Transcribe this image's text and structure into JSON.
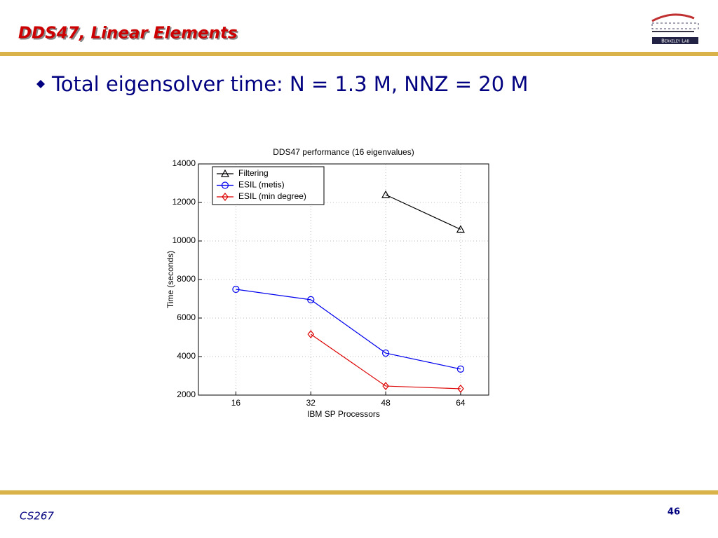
{
  "header": {
    "title": "DDS47, Linear Elements",
    "logo_text": "Berkeley Lab"
  },
  "bullets": [
    "Total eigensolver time: N = 1.3 M, NNZ = 20 M"
  ],
  "footer": {
    "course": "CS267",
    "page": "46"
  },
  "chart_data": {
    "type": "line",
    "title": "DDS47 performance (16 eigenvalues)",
    "xlabel": "IBM SP Processors",
    "ylabel": "Time (seconds)",
    "x": [
      16,
      32,
      48,
      64
    ],
    "series": [
      {
        "name": "Filtering",
        "color": "#000000",
        "marker": "triangle",
        "values": [
          null,
          null,
          12400,
          10600
        ]
      },
      {
        "name": "ESIL (metis)",
        "color": "#0000ee",
        "marker": "circle",
        "values": [
          7490,
          6950,
          4180,
          3350
        ]
      },
      {
        "name": "ESIL (min degree)",
        "color": "#dd0000",
        "marker": "diamond",
        "values": [
          null,
          5160,
          2470,
          2330
        ]
      }
    ],
    "xlim": [
      8,
      70
    ],
    "xticks": [
      16,
      32,
      48,
      64
    ],
    "ylim": [
      2000,
      14000
    ],
    "yticks": [
      2000,
      4000,
      6000,
      8000,
      10000,
      12000,
      14000
    ],
    "grid": true,
    "legend": "upper left"
  }
}
